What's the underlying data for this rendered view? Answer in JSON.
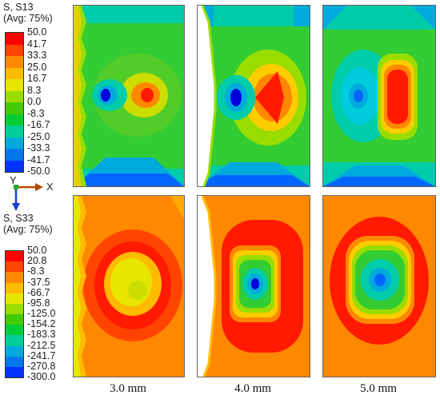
{
  "legends": [
    {
      "title_line1": "S, S13",
      "title_line2": "(Avg: 75%)",
      "ticks": [
        "50.0",
        "41.7",
        "33.3",
        "25.0",
        "16.7",
        "8.3",
        "0.0",
        "-8.3",
        "-16.7",
        "-25.0",
        "-33.3",
        "-41.7",
        "-50.0"
      ],
      "colors": [
        "#ff0000",
        "#ff4400",
        "#ff8800",
        "#ffbb00",
        "#e6e600",
        "#99dd00",
        "#44cc00",
        "#00cc33",
        "#00cc99",
        "#00aadd",
        "#0077ee",
        "#0033ff"
      ]
    },
    {
      "title_line1": "S, S33",
      "title_line2": "(Avg: 75%)",
      "ticks": [
        "50.0",
        "20.8",
        "-8.3",
        "-37.5",
        "-66.7",
        "-95.8",
        "-125.0",
        "-154.2",
        "-183.3",
        "-212.5",
        "-241.7",
        "-270.8",
        "-300.0"
      ],
      "colors": [
        "#ff0000",
        "#ff4400",
        "#ff8800",
        "#ffbb00",
        "#e6e600",
        "#99dd00",
        "#44cc00",
        "#00cc33",
        "#00cc99",
        "#00aadd",
        "#0077ee",
        "#0033ff"
      ]
    }
  ],
  "axis_triad": {
    "y_label": "Y",
    "x_label": "X"
  },
  "columns": [
    "3.0 mm",
    "4.0 mm",
    "5.0 mm"
  ],
  "palette": {
    "red": "#ff1a00",
    "orange": "#ff8800",
    "yellow": "#ffcc00",
    "lime": "#99dd00",
    "green": "#33cc33",
    "teal": "#00ccaa",
    "cyan": "#00ccdd",
    "blue": "#0066ff",
    "navy": "#0000dd"
  }
}
